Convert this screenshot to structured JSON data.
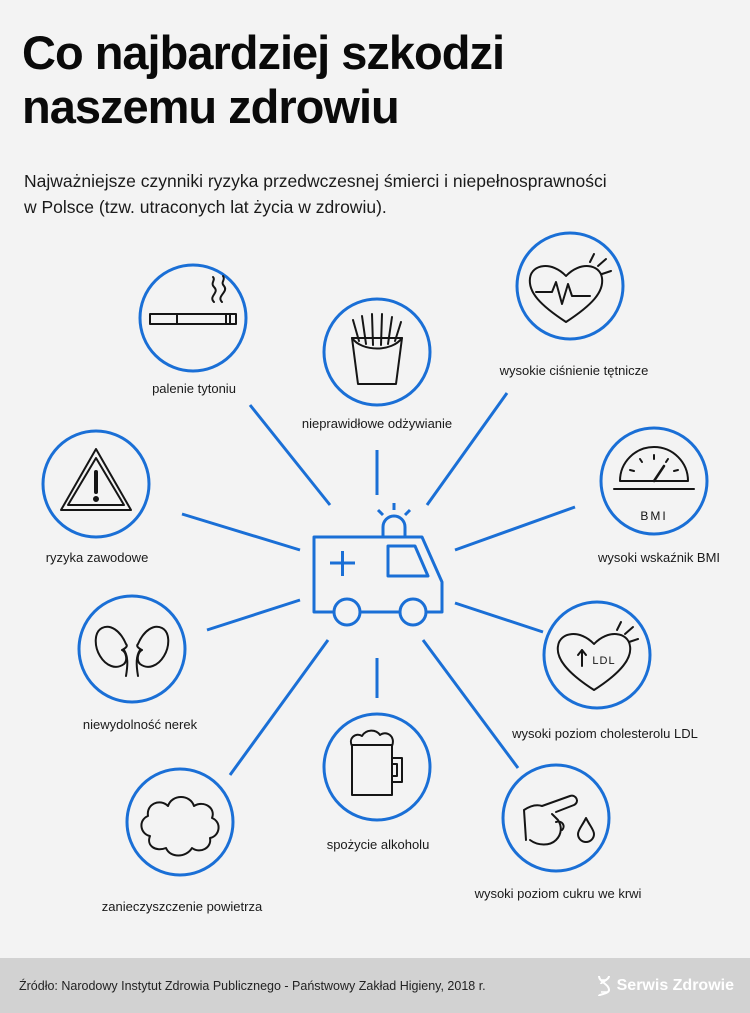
{
  "header": {
    "title_line1": "Co najbardziej szkodzi",
    "title_line2": "naszemu zdrowiu",
    "subtitle_line1": "Najważniejsze czynniki ryzyka przedwczesnej śmierci i niepełnosprawności",
    "subtitle_line2": "w Polsce (tzw. utraconych lat życia w zdrowiu)."
  },
  "colors": {
    "accent": "#1a6fd6",
    "background": "#f3f3f3",
    "footer": "#d2d2d2",
    "icon": "#151515"
  },
  "factors": {
    "smoking": {
      "label": "palenie tytoniu",
      "icon": "cigarette-icon"
    },
    "diet": {
      "label": "nieprawidłowe odżywianie",
      "icon": "fries-icon"
    },
    "blood_pressure": {
      "label": "wysokie ciśnienie tętnicze",
      "icon": "heart-pulse-icon"
    },
    "occupational": {
      "label": "ryzyka zawodowe",
      "icon": "warning-icon"
    },
    "bmi": {
      "label": "wysoki wskaźnik BMI",
      "icon": "scale-gauge-icon",
      "icon_text": "BMI"
    },
    "kidneys": {
      "label": "niewydolność nerek",
      "icon": "kidneys-icon"
    },
    "cholesterol": {
      "label": "wysoki poziom cholesterolu LDL",
      "icon": "heart-ldl-icon",
      "icon_text": "LDL"
    },
    "alcohol": {
      "label": "spożycie alkoholu",
      "icon": "beer-mug-icon"
    },
    "pollution": {
      "label": "zanieczyszczenie powietrza",
      "icon": "smog-cloud-icon"
    },
    "glucose": {
      "label": "wysoki poziom cukru we krwi",
      "icon": "finger-blood-drop-icon"
    }
  },
  "center_icon": "ambulance-icon",
  "footer": {
    "source": "Źródło: Narodowy Instytut Zdrowia Publicznego - Państwowy Zakład Higieny, 2018 r.",
    "brand": "Serwis Zdrowie"
  }
}
